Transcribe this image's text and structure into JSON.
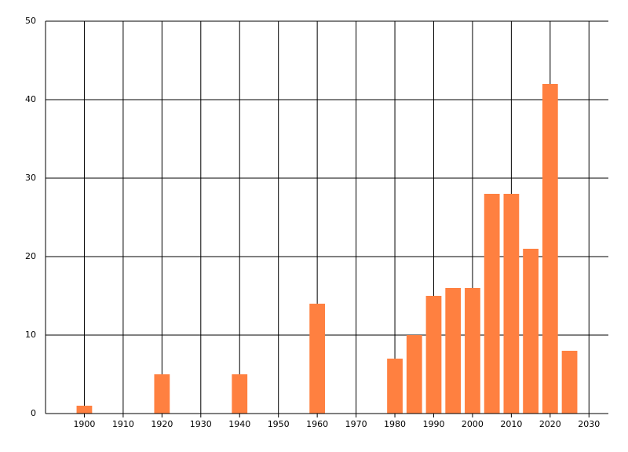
{
  "chart_data": {
    "type": "bar",
    "x": [
      1900,
      1920,
      1940,
      1960,
      1980,
      1985,
      1990,
      1995,
      2000,
      2005,
      2010,
      2015,
      2020,
      2025
    ],
    "values": [
      1,
      5,
      5,
      14,
      7,
      10,
      15,
      16,
      16,
      28,
      28,
      21,
      42,
      8
    ],
    "color": "#ff8040",
    "xlim": [
      1890,
      2035
    ],
    "ylim": [
      0,
      50
    ],
    "xticks": [
      1900,
      1910,
      1920,
      1930,
      1940,
      1950,
      1960,
      1970,
      1980,
      1990,
      2000,
      2010,
      2020,
      2030
    ],
    "yticks": [
      0,
      10,
      20,
      30,
      40,
      50
    ],
    "grid": true
  }
}
